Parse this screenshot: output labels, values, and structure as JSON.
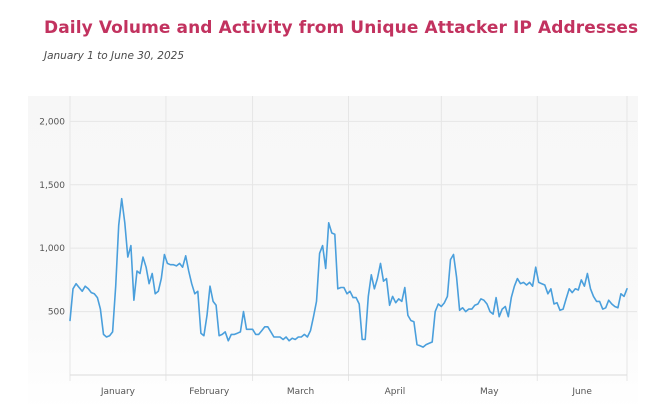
{
  "title": "Daily Volume and Activity from Unique Attacker IP Addresses",
  "subtitle": "January 1 to June 30, 2025",
  "colors": {
    "title": "#c2325f",
    "line": "#4a9fdc",
    "grid": "#e6e6e6"
  },
  "chart_data": {
    "type": "line",
    "title": "Daily Volume and Activity from Unique Attacker IP Addresses",
    "subtitle": "January 1 to June 30, 2025",
    "xlabel": "",
    "ylabel": "",
    "ylim": [
      0,
      2200
    ],
    "y_ticks": [
      500,
      1000,
      1500,
      2000
    ],
    "y_tick_labels": [
      "500",
      "1,000",
      "1,500",
      "2,000"
    ],
    "x_tick_labels": [
      "January",
      "February",
      "March",
      "April",
      "May",
      "June"
    ],
    "x_start": "2025-01-01",
    "x_end": "2025-06-30",
    "grid": true,
    "series": [
      {
        "values": [
          430,
          680,
          720,
          690,
          660,
          700,
          680,
          650,
          640,
          610,
          520,
          320,
          300,
          310,
          340,
          700,
          1180,
          1390,
          1200,
          930,
          1020,
          590,
          820,
          800,
          930,
          850,
          720,
          800,
          640,
          660,
          760,
          950,
          880,
          870,
          870,
          860,
          880,
          850,
          940,
          820,
          720,
          640,
          660,
          330,
          310,
          470,
          700,
          580,
          550,
          310,
          320,
          340,
          270,
          320,
          320,
          330,
          340,
          500,
          360,
          360,
          360,
          320,
          320,
          350,
          380,
          380,
          340,
          300,
          300,
          300,
          280,
          300,
          270,
          290,
          280,
          300,
          300,
          320,
          300,
          350,
          460,
          580,
          960,
          1020,
          840,
          1200,
          1120,
          1110,
          680,
          690,
          690,
          640,
          660,
          610,
          610,
          560,
          280,
          280,
          620,
          790,
          680,
          760,
          880,
          740,
          760,
          550,
          620,
          570,
          600,
          580,
          690,
          470,
          430,
          420,
          240,
          230,
          220,
          240,
          250,
          260,
          500,
          560,
          540,
          570,
          620,
          910,
          950,
          770,
          510,
          530,
          500,
          520,
          520,
          550,
          560,
          600,
          590,
          560,
          500,
          480,
          610,
          460,
          520,
          540,
          460,
          610,
          700,
          760,
          720,
          730,
          710,
          730,
          700,
          850,
          730,
          720,
          710,
          640,
          680,
          560,
          570,
          510,
          520,
          600,
          680,
          650,
          680,
          670,
          750,
          700,
          800,
          680,
          620,
          580,
          580,
          520,
          530,
          590,
          560,
          540,
          530,
          640,
          620,
          680
        ]
      }
    ]
  }
}
